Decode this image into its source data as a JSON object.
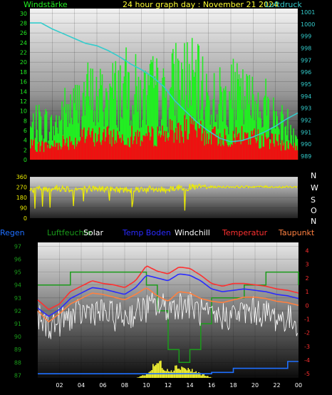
{
  "header": {
    "left_label": "Windstärke",
    "title": "24 hour graph day : November 21 2024",
    "right_label": "Luftdruck"
  },
  "compass": [
    "N",
    "W",
    "S",
    "O",
    "N"
  ],
  "legend": [
    {
      "label": "Regen",
      "color": "#1e6fff"
    },
    {
      "label": "Luftfeuchte",
      "color": "#1a9b1a"
    },
    {
      "label": "Solar",
      "color": "#ffffff"
    },
    {
      "label": "Temp Boden",
      "color": "#2a2aff"
    },
    {
      "label": "Windchill",
      "color": "#ffffff"
    },
    {
      "label": "Temperatur",
      "color": "#ff3030"
    },
    {
      "label": "Taupunkt",
      "color": "#ff8040"
    }
  ],
  "colors": {
    "wind_gust": "#22ee22",
    "wind_avg": "#ee1111",
    "pressure": "#33cccc",
    "wind_dir": "#eeee00",
    "humidity": "#1a9b1a",
    "solar": "#ffff33",
    "rain": "#1e6fff",
    "soil_temp": "#2a2aff",
    "windchill": "#ffffff",
    "temperature": "#ff3030",
    "dewpoint": "#ff8040"
  },
  "chart_data": [
    {
      "type": "bar",
      "name": "wind_and_pressure",
      "x_ticks": [
        "02",
        "04",
        "06",
        "08",
        "10",
        "12",
        "14",
        "16",
        "18",
        "20",
        "22",
        "00"
      ],
      "y_left_ticks": [
        "0",
        "2",
        "4",
        "6",
        "8",
        "10",
        "12",
        "14",
        "16",
        "18",
        "20",
        "22",
        "24",
        "26",
        "28",
        "30"
      ],
      "y_left_range": [
        0,
        31
      ],
      "y_right_ticks": [
        "989",
        "990",
        "991",
        "992",
        "993",
        "994",
        "995",
        "996",
        "997",
        "998",
        "999",
        "1000",
        "1001"
      ],
      "y_right_range": [
        988.7,
        1001.3
      ],
      "x_hours": [
        0,
        1,
        2,
        3,
        4,
        5,
        6,
        7,
        8,
        9,
        10,
        11,
        12,
        13,
        14,
        15,
        16,
        17,
        18,
        19,
        20,
        21,
        22,
        23,
        24
      ],
      "wind_gust": [
        7,
        9,
        7,
        11,
        12,
        15,
        14,
        15,
        16,
        17,
        14,
        16,
        14,
        18,
        19,
        17,
        14,
        14,
        15,
        14,
        13,
        13,
        9,
        8,
        6
      ],
      "wind_avg": [
        3,
        3,
        3,
        4,
        4,
        5,
        5,
        5,
        5,
        5,
        5,
        5,
        6,
        6,
        7,
        6,
        5,
        5,
        5,
        5,
        5,
        4,
        4,
        3,
        3
      ],
      "pressure": [
        1000.1,
        1000.1,
        999.6,
        999.2,
        998.8,
        998.4,
        998.2,
        997.8,
        997.3,
        996.7,
        996.2,
        995.6,
        994.8,
        993.6,
        992.7,
        991.8,
        991.1,
        990.5,
        990.2,
        990.3,
        990.6,
        991.0,
        991.5,
        992.1,
        992.6
      ]
    },
    {
      "type": "scatter",
      "name": "wind_direction",
      "y_ticks": [
        "0",
        "90",
        "180",
        "270",
        "360"
      ],
      "y_range": [
        0,
        360
      ],
      "x_hours": [
        0,
        1,
        2,
        3,
        4,
        5,
        6,
        7,
        8,
        9,
        10,
        11,
        12,
        13,
        14,
        15,
        16,
        17,
        18,
        19,
        20,
        21,
        22,
        23,
        24
      ],
      "direction": [
        245,
        255,
        260,
        262,
        250,
        255,
        258,
        252,
        248,
        250,
        255,
        250,
        248,
        265,
        268,
        270,
        272,
        272,
        273,
        272,
        274,
        273,
        272,
        271,
        272
      ]
    },
    {
      "type": "line",
      "name": "temperature_humidity",
      "y_left_ticks": [
        "87",
        "88",
        "89",
        "90",
        "91",
        "92",
        "93",
        "94",
        "95",
        "96",
        "97"
      ],
      "y_left_range": [
        86.8,
        97.3
      ],
      "y_right_ticks": [
        "-5",
        "-4",
        "-3",
        "-2",
        "-1",
        "0",
        "1",
        "2",
        "3",
        "4"
      ],
      "y_right_range": [
        -5.3,
        4.6
      ],
      "x_hours": [
        0,
        1,
        2,
        3,
        4,
        5,
        6,
        7,
        8,
        9,
        10,
        11,
        12,
        13,
        14,
        15,
        16,
        17,
        18,
        19,
        20,
        21,
        22,
        23,
        24
      ],
      "humidity": [
        94,
        94,
        94,
        95,
        95,
        95,
        95,
        95,
        95,
        95,
        94,
        92,
        89,
        88,
        89,
        91,
        93,
        93,
        93,
        94,
        94,
        95,
        95,
        95,
        94
      ],
      "temperature": [
        0.4,
        -0.3,
        0.1,
        1.0,
        1.4,
        1.8,
        1.6,
        1.5,
        1.3,
        1.8,
        2.9,
        2.5,
        2.3,
        2.8,
        2.7,
        2.2,
        1.6,
        1.4,
        1.6,
        1.6,
        1.5,
        1.4,
        1.2,
        1.1,
        0.9
      ],
      "soil_temp": [
        -0.2,
        -0.8,
        -0.3,
        0.5,
        0.9,
        1.3,
        1.2,
        1.0,
        0.8,
        1.3,
        2.2,
        2.0,
        1.8,
        2.3,
        2.2,
        1.8,
        1.2,
        1.0,
        1.1,
        1.2,
        1.1,
        1.0,
        0.8,
        0.7,
        0.5
      ],
      "dewpoint": [
        -0.4,
        -1.2,
        -0.6,
        0.1,
        0.5,
        0.9,
        0.8,
        0.6,
        0.4,
        0.8,
        1.3,
        0.7,
        0.3,
        1.0,
        0.9,
        0.5,
        0.3,
        0.2,
        0.4,
        0.6,
        0.6,
        0.5,
        0.3,
        0.2,
        0.0
      ],
      "windchill": [
        -1.0,
        -1.5,
        -1.2,
        -0.8,
        -0.6,
        -0.3,
        -0.6,
        -0.8,
        -0.8,
        -0.5,
        -0.2,
        0.0,
        -0.2,
        0.1,
        0.0,
        -0.5,
        -1.0,
        -0.8,
        -0.7,
        -0.5,
        -0.4,
        -0.6,
        -0.9,
        -1.0,
        -1.2
      ],
      "solar": [
        0,
        0,
        0,
        0,
        0,
        0,
        0,
        0,
        0,
        0,
        0.1,
        0.4,
        0.2,
        0.3,
        0.2,
        0.1,
        0,
        0,
        0,
        0,
        0,
        0,
        0,
        0,
        0
      ],
      "rain": [
        0,
        0,
        0,
        0,
        0,
        0,
        0,
        0,
        0,
        0,
        0,
        0,
        0,
        0,
        0,
        0,
        0.1,
        0.1,
        0.4,
        0.4,
        0.4,
        0.4,
        0.4,
        0.9,
        0.9
      ]
    }
  ]
}
